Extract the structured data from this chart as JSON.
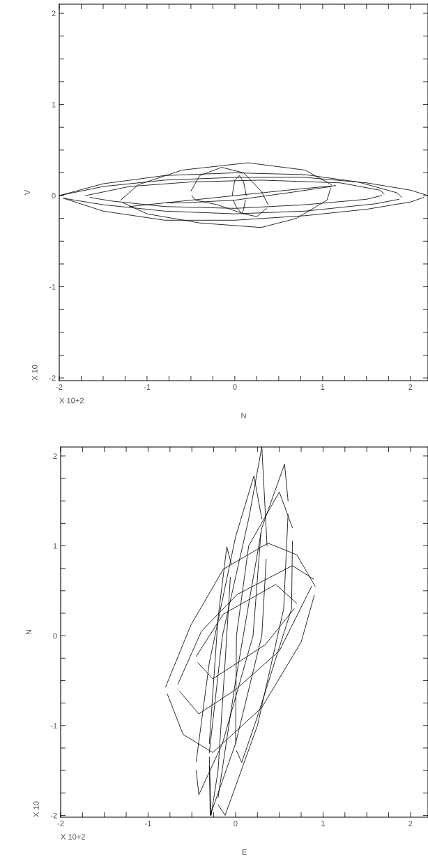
{
  "chart_data": [
    {
      "type": "line",
      "xlabel": "N",
      "ylabel": "V",
      "annotations": [
        "X 10+2",
        "X 10"
      ],
      "xlim": [
        -2,
        2.2
      ],
      "ylim": [
        -2.03,
        2.1
      ],
      "grid": false,
      "xticks": [
        -2,
        {
          "value": -1.75,
          "label": null
        },
        {
          "value": -1.5,
          "label": null
        },
        {
          "value": -1.25,
          "label": null
        },
        -1,
        {
          "value": -0.75,
          "label": null
        },
        {
          "value": -0.5,
          "label": null
        },
        {
          "value": -0.25,
          "label": null
        },
        0,
        {
          "value": 0.25,
          "label": null
        },
        {
          "value": 0.5,
          "label": null
        },
        {
          "value": 0.75,
          "label": null
        },
        1,
        {
          "value": 1.25,
          "label": null
        },
        {
          "value": 1.5,
          "label": null
        },
        {
          "value": 1.75,
          "label": null
        },
        2
      ],
      "yticks": [
        -2,
        {
          "value": -1.75,
          "label": null
        },
        {
          "value": -1.5,
          "label": null
        },
        {
          "value": -1.25,
          "label": null
        },
        -1,
        {
          "value": -0.75,
          "label": null
        },
        {
          "value": -0.5,
          "label": null
        },
        {
          "value": -0.25,
          "label": null
        },
        0,
        {
          "value": 0.25,
          "label": null
        },
        {
          "value": 0.5,
          "label": null
        },
        {
          "value": 0.75,
          "label": null
        },
        1,
        {
          "value": 1.25,
          "label": null
        },
        {
          "value": 1.5,
          "label": null
        },
        {
          "value": 1.75,
          "label": null
        },
        2
      ],
      "series": [
        {
          "color": "#000000",
          "x": [
            -2,
            -1.5,
            -0.8,
            0,
            0.8,
            1.5,
            2.0,
            2.2
          ],
          "values": [
            0,
            0.1,
            0.17,
            0.2,
            0.2,
            0.14,
            0.06,
            0
          ]
        },
        {
          "color": "#000000",
          "x": [
            -1.95,
            -1.5,
            -0.8,
            0,
            0.8,
            1.5,
            2.0,
            2.15
          ],
          "values": [
            -0.03,
            -0.17,
            -0.27,
            -0.27,
            -0.22,
            -0.15,
            -0.07,
            -0.02
          ]
        },
        {
          "color": "#000000",
          "x": [
            -2,
            -1.5,
            -0.8,
            0,
            0.8,
            1.4,
            1.85,
            1.9
          ],
          "values": [
            0,
            0.13,
            0.22,
            0.25,
            0.23,
            0.15,
            0.03,
            -0.02
          ]
        },
        {
          "color": "#000000",
          "x": [
            -1.95,
            -1.5,
            -0.8,
            0,
            0.8,
            1.6,
            1.87
          ],
          "values": [
            -0.03,
            -0.1,
            -0.17,
            -0.2,
            -0.17,
            -0.09,
            -0.04
          ]
        },
        {
          "color": "#000000",
          "x": [
            -1.7,
            -1.2,
            -0.5,
            0.3,
            1.2,
            1.65,
            1.7
          ],
          "values": [
            0,
            0.1,
            0.15,
            0.17,
            0.14,
            0.06,
            0.02
          ]
        },
        {
          "color": "#000000",
          "x": [
            -1.65,
            -1.4,
            -0.8,
            0,
            0.8,
            1.5,
            1.67
          ],
          "values": [
            -0.02,
            -0.06,
            -0.12,
            -0.14,
            -0.1,
            -0.04,
            0.0
          ]
        },
        {
          "color": "#000000",
          "x": [
            -1.3,
            -1.1,
            -0.6,
            0.15,
            0.8,
            1.1
          ],
          "values": [
            -0.05,
            0.12,
            0.28,
            0.36,
            0.28,
            0.12
          ]
        },
        {
          "color": "#000000",
          "x": [
            -1.27,
            -1.0,
            -0.4,
            0.3,
            0.7,
            1.05,
            1.09
          ],
          "values": [
            -0.08,
            -0.2,
            -0.3,
            -0.35,
            -0.25,
            -0.05,
            0.08
          ]
        },
        {
          "color": "#000000",
          "x": [
            -0.5,
            -0.4,
            -0.15,
            0.1,
            0.3,
            0.38
          ],
          "values": [
            0.05,
            0.22,
            0.31,
            0.25,
            0.05,
            -0.1
          ]
        },
        {
          "color": "#000000",
          "x": [
            -0.49,
            -0.45,
            -0.2,
            0.1,
            0.25,
            0.36
          ],
          "values": [
            0.0,
            -0.05,
            -0.1,
            -0.2,
            -0.23,
            -0.14
          ]
        },
        {
          "color": "#000000",
          "x": [
            -0.03,
            0,
            0.05,
            0.1,
            0.13
          ],
          "values": [
            0,
            0.17,
            0.22,
            0.15,
            0
          ]
        },
        {
          "color": "#000000",
          "x": [
            -0.02,
            0.02,
            0.08,
            0.1,
            0.12
          ],
          "values": [
            -0.05,
            -0.13,
            -0.2,
            -0.15,
            -0.05
          ]
        },
        {
          "color": "#000000",
          "x": [
            -1.2,
            -0.6,
            0,
            0.6,
            1.15
          ],
          "values": [
            -0.12,
            -0.06,
            0,
            0.06,
            0.11
          ]
        },
        {
          "color": "#000000",
          "x": [
            -0.78,
            -0.6,
            0,
            0.6,
            1.1
          ],
          "values": [
            -0.08,
            -0.08,
            -0.05,
            0.03,
            0.1
          ]
        }
      ]
    },
    {
      "type": "line",
      "xlabel": "E",
      "ylabel": "N",
      "annotations": [
        "X 10+2",
        "X 10"
      ],
      "xlim": [
        -2,
        2.2
      ],
      "ylim": [
        -2.02,
        2.1
      ],
      "grid": false,
      "xticks": [
        -2,
        {
          "value": -1.75,
          "label": null
        },
        {
          "value": -1.5,
          "label": null
        },
        {
          "value": -1.25,
          "label": null
        },
        -1,
        {
          "value": -0.75,
          "label": null
        },
        {
          "value": -0.5,
          "label": null
        },
        {
          "value": -0.25,
          "label": null
        },
        0,
        {
          "value": 0.25,
          "label": null
        },
        {
          "value": 0.5,
          "label": null
        },
        {
          "value": 0.75,
          "label": null
        },
        1,
        {
          "value": 1.25,
          "label": null
        },
        {
          "value": 1.5,
          "label": null
        },
        {
          "value": 1.75,
          "label": null
        },
        2
      ],
      "yticks": [
        -2,
        {
          "value": -1.75,
          "label": null
        },
        {
          "value": -1.5,
          "label": null
        },
        {
          "value": -1.25,
          "label": null
        },
        -1,
        {
          "value": -0.75,
          "label": null
        },
        {
          "value": -0.5,
          "label": null
        },
        {
          "value": -0.25,
          "label": null
        },
        0,
        {
          "value": 0.25,
          "label": null
        },
        {
          "value": 0.5,
          "label": null
        },
        {
          "value": 0.75,
          "label": null
        },
        1,
        {
          "value": 1.25,
          "label": null
        },
        {
          "value": 1.5,
          "label": null
        },
        {
          "value": 1.75,
          "label": null
        },
        2
      ],
      "series": [
        {
          "color": "#000000",
          "x": [
            -0.8,
            -0.51,
            -0.14,
            0.37,
            0.7,
            0.91
          ],
          "values": [
            -0.57,
            0.12,
            0.74,
            1.03,
            0.9,
            0.55
          ]
        },
        {
          "color": "#000000",
          "x": [
            -0.78,
            -0.6,
            -0.26,
            0.3,
            0.75,
            0.9
          ],
          "values": [
            -0.65,
            -1.1,
            -1.3,
            -0.8,
            -0.07,
            0.45
          ]
        },
        {
          "color": "#000000",
          "x": [
            -0.66,
            -0.39,
            0.02,
            0.65,
            0.89
          ],
          "values": [
            -0.54,
            0.05,
            0.46,
            0.78,
            0.63
          ]
        },
        {
          "color": "#000000",
          "x": [
            -0.64,
            -0.42,
            0.0,
            0.5,
            0.87
          ],
          "values": [
            -0.62,
            -0.87,
            -0.6,
            -0.17,
            0.55
          ]
        },
        {
          "color": "#000000",
          "x": [
            -0.45,
            -0.14,
            0.46,
            0.7
          ],
          "values": [
            -0.23,
            0.24,
            0.57,
            0.36
          ]
        },
        {
          "color": "#000000",
          "x": [
            -0.43,
            -0.26,
            0.34,
            0.67
          ],
          "values": [
            -0.3,
            -0.48,
            -0.1,
            0.3
          ]
        },
        {
          "color": "#000000",
          "x": [
            -0.3,
            -0.15,
            0.15,
            0.3,
            0.36
          ],
          "values": [
            -1.3,
            0,
            1.3,
            2.1,
            1.0
          ]
        },
        {
          "color": "#000000",
          "x": [
            -0.3,
            -0.29,
            0.0,
            0.3,
            0.35
          ],
          "values": [
            -1.45,
            -2.0,
            -1.2,
            0,
            0.85
          ]
        },
        {
          "color": "#000000",
          "x": [
            -0.45,
            -0.3,
            0.0,
            0.21,
            0.3
          ],
          "values": [
            -1.4,
            -0.3,
            1.1,
            1.78,
            1.3
          ]
        },
        {
          "color": "#000000",
          "x": [
            -0.45,
            -0.42,
            -0.15,
            0.2,
            0.29
          ],
          "values": [
            -1.5,
            -1.77,
            -1.2,
            0,
            1.15
          ]
        },
        {
          "color": "#000000",
          "x": [
            -0.2,
            0.0,
            0.3,
            0.56,
            0.6
          ],
          "values": [
            -1.8,
            -0.5,
            1.2,
            1.91,
            1.5
          ]
        },
        {
          "color": "#000000",
          "x": [
            -0.2,
            -0.12,
            0.25,
            0.55,
            0.6
          ],
          "values": [
            -1.88,
            -2.0,
            -1.0,
            0.3,
            1.35
          ]
        },
        {
          "color": "#000000",
          "x": [
            0.0,
            0.01,
            0.15,
            0.5,
            0.65
          ],
          "values": [
            -1.2,
            0,
            1.0,
            1.6,
            1.2
          ]
        },
        {
          "color": "#000000",
          "x": [
            0.01,
            0.07,
            0.25,
            0.64,
            0.65
          ],
          "values": [
            -1.28,
            -1.41,
            -0.9,
            0.3,
            1.05
          ]
        },
        {
          "color": "#000000",
          "x": [
            -0.3,
            -0.2,
            -0.1,
            -0.05
          ],
          "values": [
            -1.2,
            0.2,
            0.99,
            0.8
          ]
        },
        {
          "color": "#000000",
          "x": [
            -0.3,
            -0.28,
            -0.2,
            -0.12,
            -0.06
          ],
          "values": [
            -1.35,
            -2.0,
            -1.5,
            -0.3,
            0.65
          ]
        }
      ]
    }
  ]
}
